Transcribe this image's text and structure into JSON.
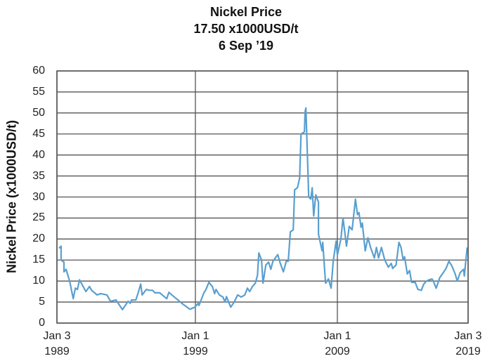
{
  "header": {
    "title": "Nickel Price",
    "subtitle": "17.50 x1000USD/t",
    "date": "6 Sep ’19"
  },
  "colors": {
    "line": "#5a9fcf",
    "grid": "#555555",
    "text": "#111111"
  },
  "chart_data": {
    "type": "line",
    "title": "Nickel Price",
    "subtitle": "17.50 x1000USD/t, 6 Sep ’19",
    "xlabel": "",
    "ylabel": "Nickel Price (x1000USD/t)",
    "ylim": [
      0,
      60
    ],
    "xlim": [
      1989.0,
      2019.0
    ],
    "grid": true,
    "legend": "none",
    "y_ticks": [
      "0",
      "5",
      "10",
      "15",
      "20",
      "25",
      "30",
      "35",
      "40",
      "45",
      "50",
      "55",
      "60"
    ],
    "x_ticks": [
      {
        "year": 1989.0,
        "line1": "Jan 3",
        "line2": "1989"
      },
      {
        "year": 1999.0,
        "line1": "Jan 1",
        "line2": "1999"
      },
      {
        "year": 2009.0,
        "line1": "Jan 1",
        "line2": "2009"
      },
      {
        "year": 2019.0,
        "line1": "Jan 3",
        "line2": "2019"
      }
    ],
    "series": [
      {
        "name": "Nickel Price",
        "points": [
          [
            1989.15,
            17.8
          ],
          [
            1989.3,
            18.3
          ],
          [
            1989.3,
            15.0
          ],
          [
            1989.51,
            14.5
          ],
          [
            1989.51,
            12.2
          ],
          [
            1989.66,
            12.8
          ],
          [
            1989.92,
            10.0
          ],
          [
            1990.18,
            5.8
          ],
          [
            1990.33,
            8.3
          ],
          [
            1990.48,
            8.0
          ],
          [
            1990.63,
            10.3
          ],
          [
            1991.09,
            7.5
          ],
          [
            1991.35,
            8.7
          ],
          [
            1991.5,
            7.8
          ],
          [
            1991.9,
            6.7
          ],
          [
            1992.16,
            7.0
          ],
          [
            1992.61,
            6.7
          ],
          [
            1992.87,
            5.2
          ],
          [
            1993.27,
            5.5
          ],
          [
            1993.73,
            3.2
          ],
          [
            1994.14,
            5.2
          ],
          [
            1994.29,
            4.7
          ],
          [
            1994.39,
            5.5
          ],
          [
            1994.7,
            5.5
          ],
          [
            1994.85,
            7.0
          ],
          [
            1995.05,
            9.3
          ],
          [
            1995.15,
            6.7
          ],
          [
            1995.46,
            8.0
          ],
          [
            1995.66,
            7.8
          ],
          [
            1995.91,
            7.8
          ],
          [
            1996.07,
            7.2
          ],
          [
            1996.42,
            7.2
          ],
          [
            1996.93,
            5.8
          ],
          [
            1997.08,
            7.3
          ],
          [
            1997.44,
            6.3
          ],
          [
            1997.74,
            5.5
          ],
          [
            1998.1,
            4.5
          ],
          [
            1998.6,
            3.3
          ],
          [
            1998.96,
            3.8
          ],
          [
            1999.2,
            4.7
          ],
          [
            1999.25,
            4.2
          ],
          [
            1999.6,
            7.2
          ],
          [
            1999.75,
            8.0
          ],
          [
            1999.95,
            9.7
          ],
          [
            2000.2,
            8.7
          ],
          [
            2000.35,
            7.0
          ],
          [
            2000.45,
            8.0
          ],
          [
            2000.69,
            6.7
          ],
          [
            2000.94,
            6.2
          ],
          [
            2001.09,
            5.0
          ],
          [
            2001.19,
            6.3
          ],
          [
            2001.49,
            3.8
          ],
          [
            2001.73,
            5.0
          ],
          [
            2001.98,
            6.7
          ],
          [
            2002.23,
            6.2
          ],
          [
            2002.48,
            6.7
          ],
          [
            2002.67,
            8.3
          ],
          [
            2002.82,
            7.5
          ],
          [
            2003.02,
            8.7
          ],
          [
            2003.22,
            9.5
          ],
          [
            2003.37,
            11.3
          ],
          [
            2003.47,
            16.7
          ],
          [
            2003.66,
            15.0
          ],
          [
            2003.76,
            9.5
          ],
          [
            2003.96,
            13.8
          ],
          [
            2004.16,
            14.5
          ],
          [
            2004.31,
            12.8
          ],
          [
            2004.46,
            14.7
          ],
          [
            2004.8,
            16.3
          ],
          [
            2004.95,
            14.5
          ],
          [
            2005.2,
            12.2
          ],
          [
            2005.4,
            14.7
          ],
          [
            2005.54,
            14.7
          ],
          [
            2005.69,
            21.7
          ],
          [
            2005.89,
            22.2
          ],
          [
            2005.99,
            31.7
          ],
          [
            2006.19,
            32.2
          ],
          [
            2006.34,
            34.5
          ],
          [
            2006.44,
            45.0
          ],
          [
            2006.68,
            45.5
          ],
          [
            2006.73,
            50.3
          ],
          [
            2006.78,
            51.2
          ],
          [
            2006.93,
            35.5
          ],
          [
            2006.98,
            30.0
          ],
          [
            2007.13,
            29.5
          ],
          [
            2007.23,
            32.2
          ],
          [
            2007.33,
            25.5
          ],
          [
            2007.48,
            30.5
          ],
          [
            2007.67,
            28.8
          ],
          [
            2007.67,
            21.2
          ],
          [
            2007.92,
            17.2
          ],
          [
            2007.97,
            19.2
          ],
          [
            2008.17,
            9.5
          ],
          [
            2008.37,
            10.5
          ],
          [
            2008.56,
            8.3
          ],
          [
            2008.71,
            14.7
          ],
          [
            2008.91,
            19.5
          ],
          [
            2009.0,
            16.2
          ],
          [
            2009.27,
            20.0
          ],
          [
            2009.43,
            25.0
          ],
          [
            2009.7,
            18.3
          ],
          [
            2009.91,
            23.0
          ],
          [
            2010.13,
            22.2
          ],
          [
            2010.38,
            29.5
          ],
          [
            2010.54,
            25.8
          ],
          [
            2010.65,
            26.3
          ],
          [
            2010.81,
            22.8
          ],
          [
            2010.91,
            23.8
          ],
          [
            2011.13,
            17.2
          ],
          [
            2011.34,
            20.3
          ],
          [
            2011.56,
            17.8
          ],
          [
            2011.83,
            15.5
          ],
          [
            2011.99,
            18.0
          ],
          [
            2012.15,
            15.5
          ],
          [
            2012.37,
            18.0
          ],
          [
            2012.63,
            15.0
          ],
          [
            2012.9,
            13.3
          ],
          [
            2013.12,
            14.2
          ],
          [
            2013.23,
            13.0
          ],
          [
            2013.49,
            13.8
          ],
          [
            2013.71,
            19.2
          ],
          [
            2013.87,
            18.0
          ],
          [
            2014.03,
            15.0
          ],
          [
            2014.14,
            15.8
          ],
          [
            2014.35,
            11.7
          ],
          [
            2014.52,
            12.5
          ],
          [
            2014.68,
            9.7
          ],
          [
            2014.95,
            9.7
          ],
          [
            2015.16,
            8.0
          ],
          [
            2015.43,
            7.8
          ],
          [
            2015.59,
            9.2
          ],
          [
            2015.81,
            10.0
          ],
          [
            2016.02,
            10.3
          ],
          [
            2016.24,
            10.5
          ],
          [
            2016.34,
            10.0
          ],
          [
            2016.56,
            8.3
          ],
          [
            2016.83,
            10.8
          ],
          [
            2017.1,
            12.0
          ],
          [
            2017.31,
            13.0
          ],
          [
            2017.53,
            14.7
          ],
          [
            2017.74,
            13.7
          ],
          [
            2018.01,
            11.7
          ],
          [
            2018.17,
            10.0
          ],
          [
            2018.39,
            12.0
          ],
          [
            2018.66,
            12.8
          ],
          [
            2018.71,
            11.2
          ],
          [
            2018.93,
            18.0
          ]
        ]
      }
    ]
  }
}
